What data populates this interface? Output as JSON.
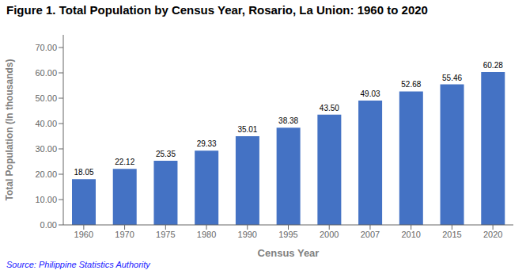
{
  "chart_data": {
    "type": "bar",
    "title": "Figure 1. Total Population by Census Year, Rosario, La Union: 1960 to 2020",
    "xlabel": "Census Year",
    "ylabel": "Total Population (In thousands)",
    "source": "Source: Philippine Statistics Authority",
    "categories": [
      "1960",
      "1970",
      "1975",
      "1980",
      "1990",
      "1995",
      "2000",
      "2007",
      "2010",
      "2015",
      "2020"
    ],
    "values": [
      18.05,
      22.12,
      25.35,
      29.33,
      35.01,
      38.38,
      43.5,
      49.03,
      52.68,
      55.46,
      60.28
    ],
    "value_labels": [
      "18.05",
      "22.12",
      "25.35",
      "29.33",
      "35.01",
      "38.38",
      "43.50",
      "49.03",
      "52.68",
      "55.46",
      "60.28"
    ],
    "data_labels": true,
    "color": "#4472C4",
    "ylim": [
      0,
      75
    ],
    "yticks": [
      {
        "value": 0,
        "label": "0.00"
      },
      {
        "value": 10,
        "label": "10.00"
      },
      {
        "value": 20,
        "label": "20.00"
      },
      {
        "value": 30,
        "label": "30.00"
      },
      {
        "value": 40,
        "label": "40.00"
      },
      {
        "value": 50,
        "label": "50.00"
      },
      {
        "value": 60,
        "label": "60.00"
      },
      {
        "value": 70,
        "label": "70.00"
      }
    ],
    "grid": false
  }
}
